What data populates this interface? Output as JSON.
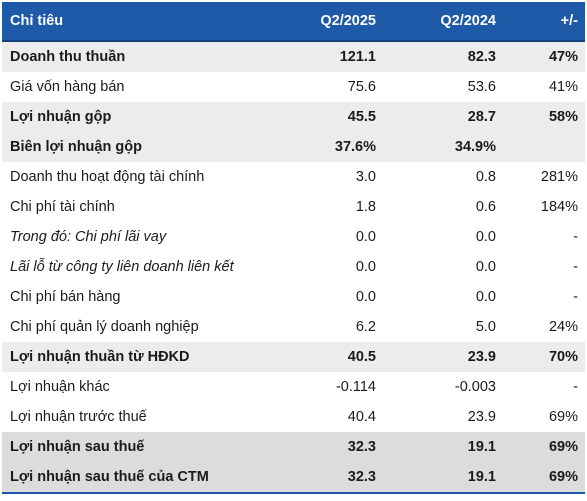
{
  "table": {
    "header": {
      "name": "Chỉ tiêu",
      "v1": "Q2/2025",
      "v2": "Q2/2024",
      "chg": "+/-"
    },
    "rows": [
      {
        "name": "Doanh thu thuần",
        "v1": "121.1",
        "v2": "82.3",
        "chg": "47%"
      },
      {
        "name": "Giá vốn hàng bán",
        "v1": "75.6",
        "v2": "53.6",
        "chg": "41%"
      },
      {
        "name": "Lợi nhuận gộp",
        "v1": "45.5",
        "v2": "28.7",
        "chg": "58%"
      },
      {
        "name": "Biên lợi nhuận gộp",
        "v1": "37.6%",
        "v2": "34.9%",
        "chg": ""
      },
      {
        "name": "Doanh thu hoạt động tài chính",
        "v1": "3.0",
        "v2": "0.8",
        "chg": "281%"
      },
      {
        "name": "Chi phí tài chính",
        "v1": "1.8",
        "v2": "0.6",
        "chg": "184%"
      },
      {
        "name": "Trong đó: Chi phí lãi vay",
        "v1": "0.0",
        "v2": "0.0",
        "chg": "-"
      },
      {
        "name": "Lãi lỗ từ công ty liên doanh liên kết",
        "v1": "0.0",
        "v2": "0.0",
        "chg": "-"
      },
      {
        "name": "Chi phí bán hàng",
        "v1": "0.0",
        "v2": "0.0",
        "chg": "-"
      },
      {
        "name": "Chi phí quản lý doanh nghiệp",
        "v1": "6.2",
        "v2": "5.0",
        "chg": "24%"
      },
      {
        "name": "Lợi nhuận thuần từ HĐKD",
        "v1": "40.5",
        "v2": "23.9",
        "chg": "70%"
      },
      {
        "name": "Lợi nhuận khác",
        "v1": "-0.114",
        "v2": "-0.003",
        "chg": "-"
      },
      {
        "name": "Lợi nhuận trước thuế",
        "v1": "40.4",
        "v2": "23.9",
        "chg": "69%"
      },
      {
        "name": "Lợi nhuận sau thuế",
        "v1": "32.3",
        "v2": "19.1",
        "chg": "69%"
      },
      {
        "name": "Lợi nhuận sau thuế của CTM",
        "v1": "32.3",
        "v2": "19.1",
        "chg": "69%"
      }
    ]
  },
  "colors": {
    "header_bg": "#1f5aa8",
    "header_text": "#ffffff",
    "shade": "#ececec",
    "shade_dark": "#dcdcdc"
  }
}
